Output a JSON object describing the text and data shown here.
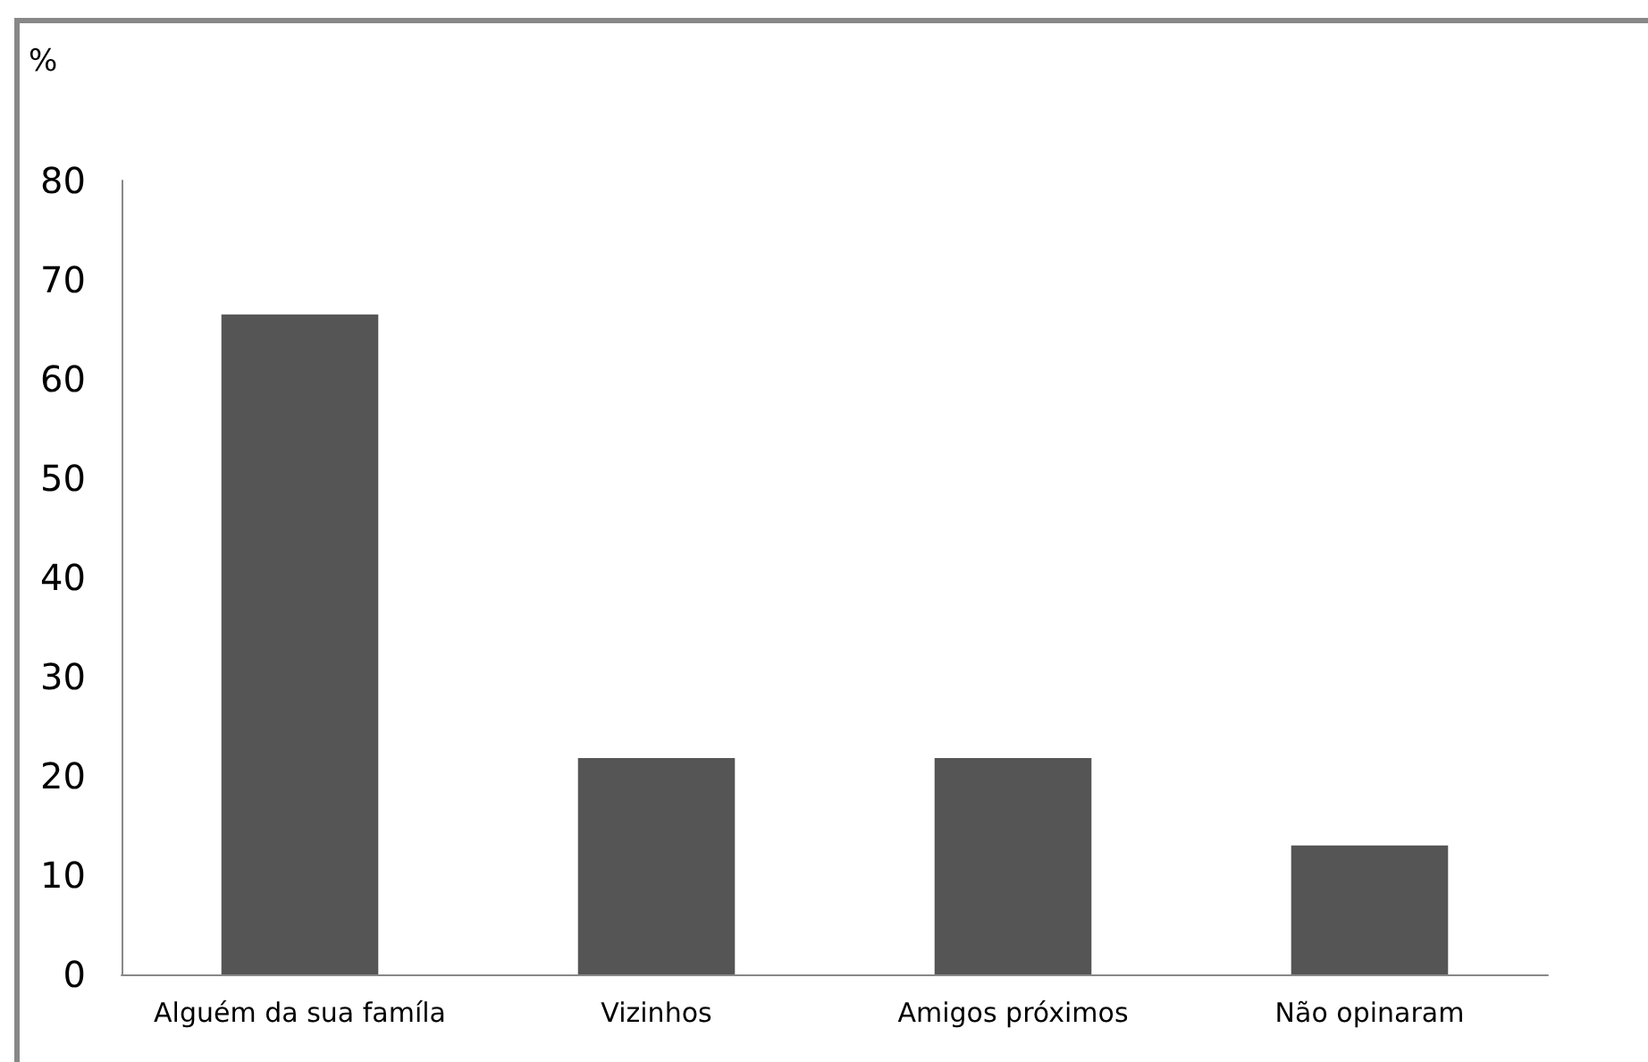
{
  "chart_data": {
    "type": "bar",
    "ylabel": "%",
    "categories": [
      "Alguém da sua famíla",
      "Vizinhos",
      "Amigos próximos",
      "Não opinaram"
    ],
    "values": [
      66.5,
      21.8,
      21.8,
      13
    ],
    "color": "#555555",
    "ylim": [
      0,
      80
    ],
    "yticks": [
      0,
      10,
      20,
      30,
      40,
      50,
      60,
      70,
      80
    ],
    "grid": false
  }
}
